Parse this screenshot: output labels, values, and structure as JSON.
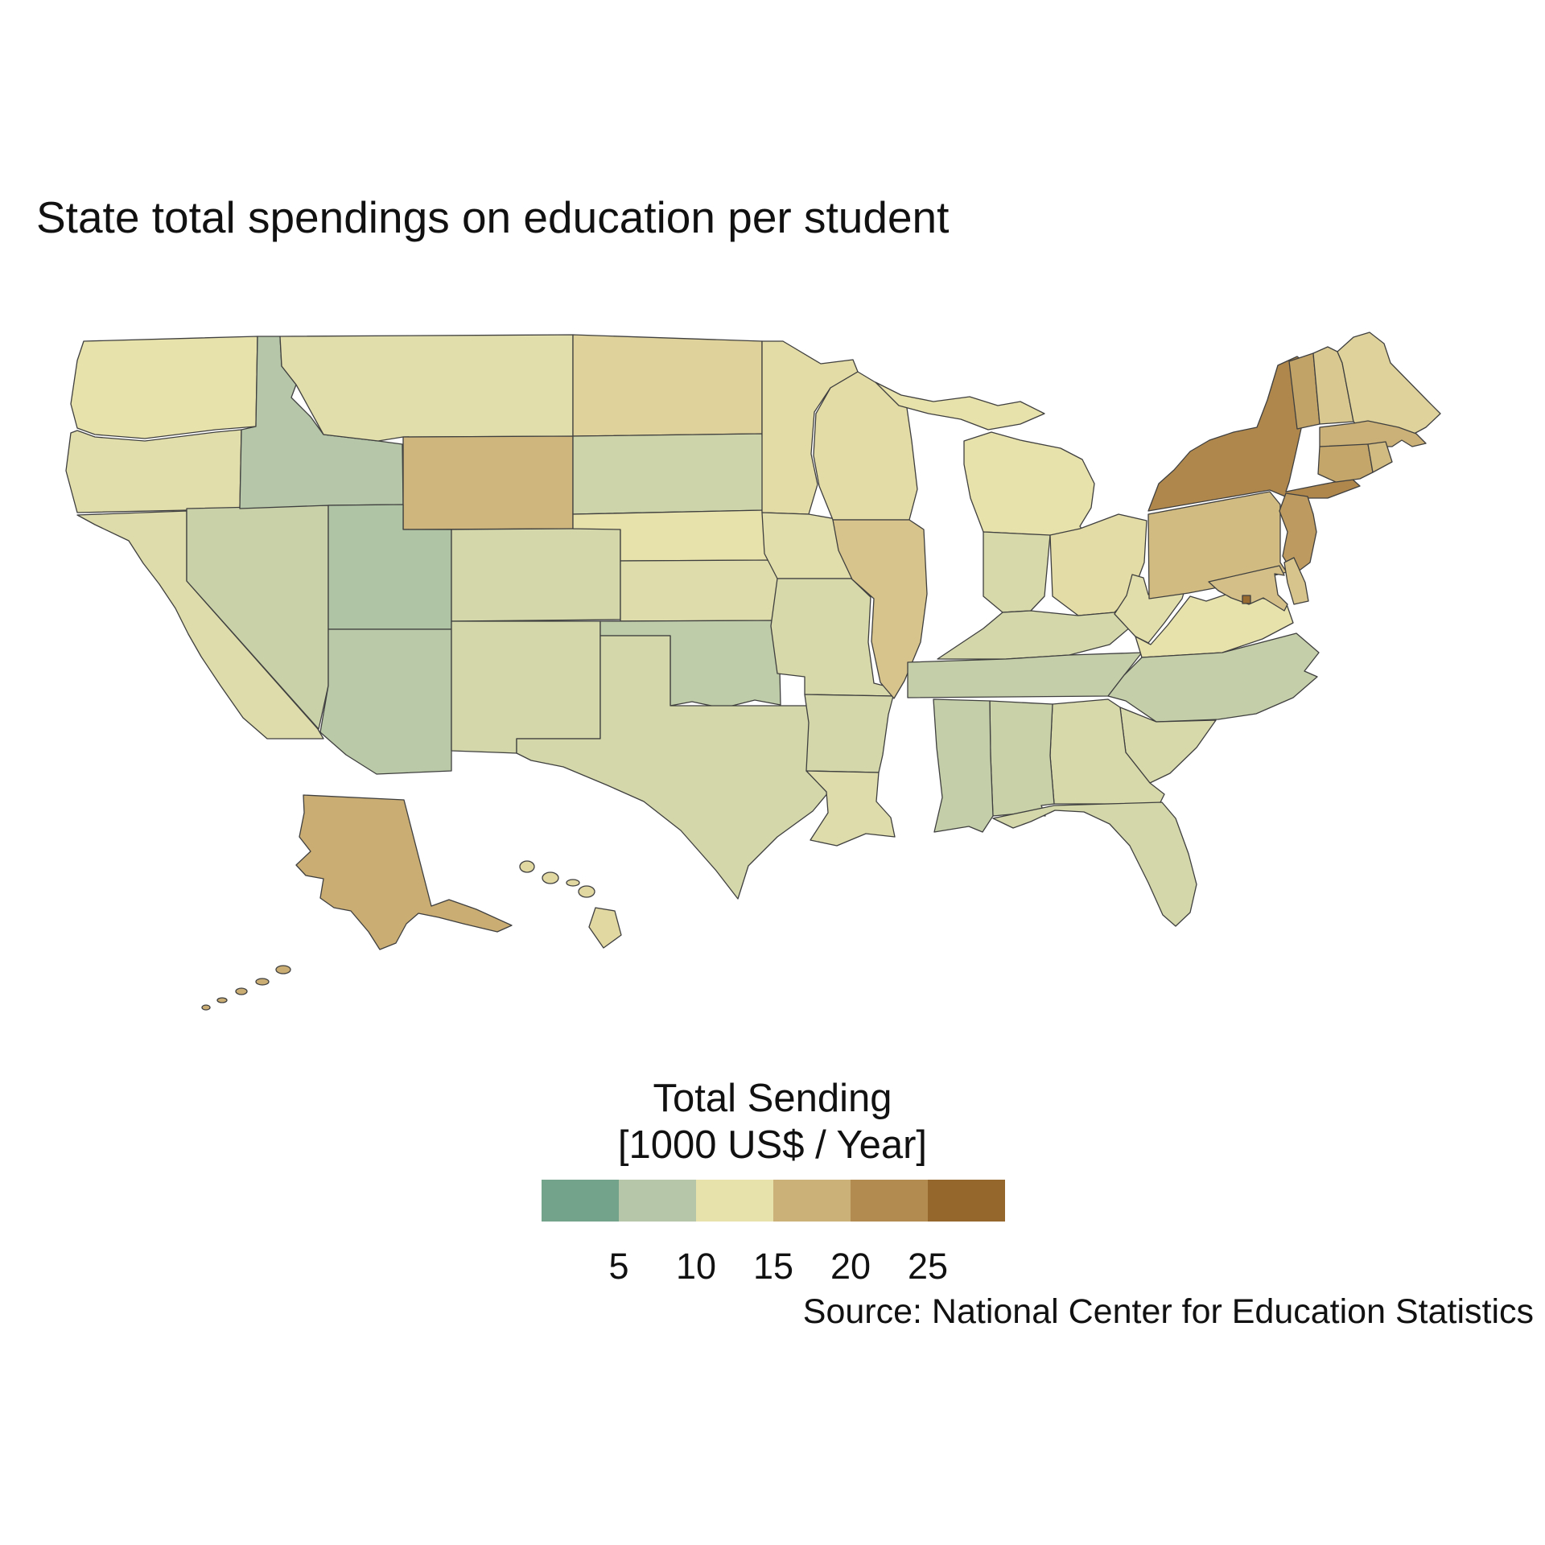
{
  "title": "State total spendings on education per student",
  "source": "Source: National Center for Education Statistics",
  "legend": {
    "title_line1": "Total Sending",
    "title_line2": "[1000 US$ / Year]",
    "ticks": [
      "5",
      "10",
      "15",
      "20",
      "25"
    ],
    "bin_colors": [
      "#74a38c",
      "#b5c7a8",
      "#e7e1ab",
      "#cbb177",
      "#b28b50",
      "#96672c"
    ],
    "bin_anchor_values": [
      2.5,
      7.5,
      12.5,
      17.5,
      22.5,
      27.5
    ],
    "domain_min": 0,
    "domain_max": 30
  },
  "chart_data": {
    "type": "choropleth-map",
    "region": "United States (Albers projection with Alaska and Hawaii insets)",
    "value_label": "Total Sending [1000 US$ / Year]",
    "title": "State total spendings on education per student",
    "legend_position": "bottom-center",
    "states": [
      {
        "code": "WA",
        "name": "Washington",
        "value": 12.5
      },
      {
        "code": "OR",
        "name": "Oregon",
        "value": 12.0
      },
      {
        "code": "CA",
        "name": "California",
        "value": 11.5
      },
      {
        "code": "NV",
        "name": "Nevada",
        "value": 9.5
      },
      {
        "code": "ID",
        "name": "Idaho",
        "value": 7.5
      },
      {
        "code": "MT",
        "name": "Montana",
        "value": 12.0
      },
      {
        "code": "WY",
        "name": "Wyoming",
        "value": 17.0
      },
      {
        "code": "UT",
        "name": "Utah",
        "value": 7.0
      },
      {
        "code": "CO",
        "name": "Colorado",
        "value": 10.5
      },
      {
        "code": "AZ",
        "name": "Arizona",
        "value": 8.0
      },
      {
        "code": "NM",
        "name": "New Mexico",
        "value": 10.5
      },
      {
        "code": "ND",
        "name": "North Dakota",
        "value": 14.0
      },
      {
        "code": "SD",
        "name": "South Dakota",
        "value": 10.0
      },
      {
        "code": "NE",
        "name": "Nebraska",
        "value": 12.5
      },
      {
        "code": "KS",
        "name": "Kansas",
        "value": 11.5
      },
      {
        "code": "OK",
        "name": "Oklahoma",
        "value": 8.5
      },
      {
        "code": "TX",
        "name": "Texas",
        "value": 10.5
      },
      {
        "code": "MN",
        "name": "Minnesota",
        "value": 13.0
      },
      {
        "code": "IA",
        "name": "Iowa",
        "value": 12.0
      },
      {
        "code": "MO",
        "name": "Missouri",
        "value": 11.0
      },
      {
        "code": "AR",
        "name": "Arkansas",
        "value": 10.5
      },
      {
        "code": "LA",
        "name": "Louisiana",
        "value": 11.5
      },
      {
        "code": "WI",
        "name": "Wisconsin",
        "value": 13.0
      },
      {
        "code": "IL",
        "name": "Illinois",
        "value": 15.5
      },
      {
        "code": "MI",
        "name": "Michigan",
        "value": 12.5
      },
      {
        "code": "IN",
        "name": "Indiana",
        "value": 11.0
      },
      {
        "code": "OH",
        "name": "Ohio",
        "value": 13.0
      },
      {
        "code": "KY",
        "name": "Kentucky",
        "value": 10.5
      },
      {
        "code": "TN",
        "name": "Tennessee",
        "value": 9.0
      },
      {
        "code": "WV",
        "name": "West Virginia",
        "value": 12.0
      },
      {
        "code": "VA",
        "name": "Virginia",
        "value": 12.5
      },
      {
        "code": "NC",
        "name": "North Carolina",
        "value": 9.0
      },
      {
        "code": "SC",
        "name": "South Carolina",
        "value": 11.0
      },
      {
        "code": "GA",
        "name": "Georgia",
        "value": 11.0
      },
      {
        "code": "AL",
        "name": "Alabama",
        "value": 9.5
      },
      {
        "code": "MS",
        "name": "Mississippi",
        "value": 9.0
      },
      {
        "code": "FL",
        "name": "Florida",
        "value": 10.5
      },
      {
        "code": "PA",
        "name": "Pennsylvania",
        "value": 16.5
      },
      {
        "code": "NY",
        "name": "New York",
        "value": 23.0
      },
      {
        "code": "VT",
        "name": "Vermont",
        "value": 19.5
      },
      {
        "code": "NH",
        "name": "New Hampshire",
        "value": 15.0
      },
      {
        "code": "ME",
        "name": "Maine",
        "value": 14.0
      },
      {
        "code": "MA",
        "name": "Massachusetts",
        "value": 17.5
      },
      {
        "code": "CT",
        "name": "Connecticut",
        "value": 19.0
      },
      {
        "code": "RI",
        "name": "Rhode Island",
        "value": 16.5
      },
      {
        "code": "NJ",
        "name": "New Jersey",
        "value": 20.5
      },
      {
        "code": "DE",
        "name": "Delaware",
        "value": 15.5
      },
      {
        "code": "MD",
        "name": "Maryland",
        "value": 16.0
      },
      {
        "code": "DC",
        "name": "District of Columbia",
        "value": 27.0
      },
      {
        "code": "AK",
        "name": "Alaska",
        "value": 18.0
      },
      {
        "code": "HI",
        "name": "Hawaii",
        "value": 13.5
      }
    ]
  }
}
